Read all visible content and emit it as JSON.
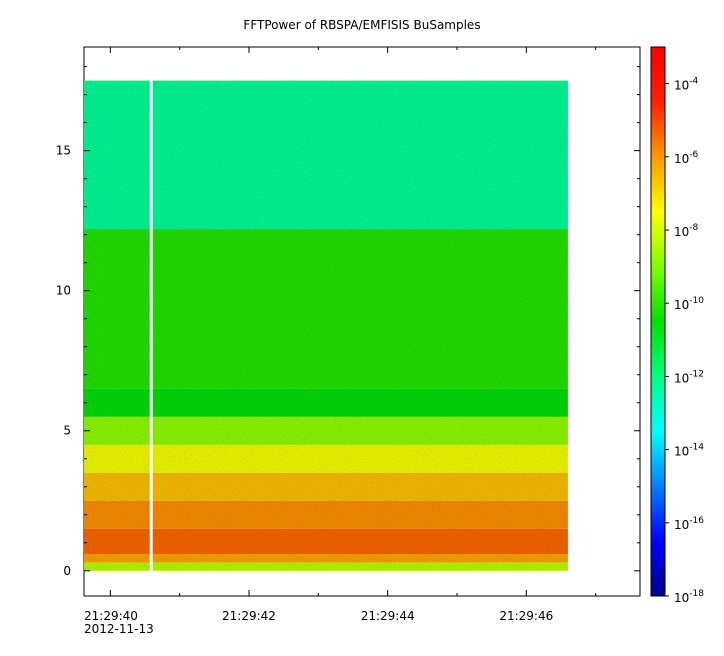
{
  "chart_data": {
    "type": "heatmap",
    "title": "FFTPower of RBSPA/EMFISIS  BuSamples",
    "xlabel": "",
    "ylabel": "",
    "x_ticks": [
      {
        "label": "21:29:40",
        "sublabel": "2012-11-13",
        "t": 0
      },
      {
        "label": "21:29:42",
        "t": 2
      },
      {
        "label": "21:29:44",
        "t": 4
      },
      {
        "label": "21:29:46",
        "t": 6
      }
    ],
    "x_range_seconds": [
      -0.38,
      7.64
    ],
    "data_x_range_seconds": [
      -0.38,
      6.6
    ],
    "gap_at_seconds": 0.59,
    "y_ticks": [
      0,
      5,
      10,
      15
    ],
    "ylim": [
      -0.9,
      18.7
    ],
    "data_y_range": [
      0,
      17.5
    ],
    "colorbar": {
      "scale": "log",
      "range": [
        1e-18,
        0.001
      ],
      "ticks": [
        {
          "base": "10",
          "exp": "-4",
          "value": -4
        },
        {
          "base": "10",
          "exp": "-6",
          "value": -6
        },
        {
          "base": "10",
          "exp": "-8",
          "value": -8
        },
        {
          "base": "10",
          "exp": "-10",
          "value": -10
        },
        {
          "base": "10",
          "exp": "-12",
          "value": -12
        },
        {
          "base": "10",
          "exp": "-14",
          "value": -14
        },
        {
          "base": "10",
          "exp": "-16",
          "value": -16
        },
        {
          "base": "10",
          "exp": "-18",
          "value": -18
        }
      ],
      "colors": [
        "#00008f",
        "#0000ff",
        "#0080ff",
        "#00ffff",
        "#00ff80",
        "#00e000",
        "#80ff00",
        "#ffff00",
        "#ff9900",
        "#ff2000",
        "#ff0000"
      ]
    },
    "bands": [
      {
        "y0": 0.0,
        "y1": 0.3,
        "log_power": -8.3
      },
      {
        "y0": 0.3,
        "y1": 0.6,
        "log_power": -6.2
      },
      {
        "y0": 0.6,
        "y1": 1.5,
        "log_power": -5.4
      },
      {
        "y0": 1.5,
        "y1": 2.5,
        "log_power": -5.9
      },
      {
        "y0": 2.5,
        "y1": 3.5,
        "log_power": -6.6
      },
      {
        "y0": 3.5,
        "y1": 4.5,
        "log_power": -7.6
      },
      {
        "y0": 4.5,
        "y1": 5.5,
        "log_power": -8.8
      },
      {
        "y0": 5.5,
        "y1": 6.5,
        "log_power": -10.6
      },
      {
        "y0": 6.5,
        "y1": 12.2,
        "log_power": -10.1
      },
      {
        "y0": 12.2,
        "y1": 17.5,
        "log_power": -12.3
      }
    ]
  }
}
